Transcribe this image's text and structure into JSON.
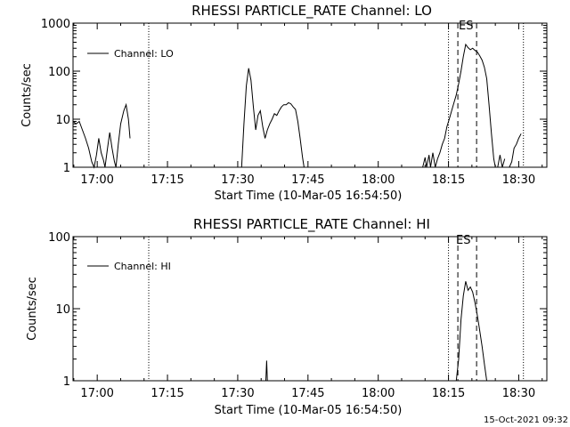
{
  "footer_timestamp": "15-Oct-2021 09:32",
  "chart_data": [
    {
      "type": "line",
      "title": "RHESSI PARTICLE_RATE Channel: LO",
      "xlabel": "Start Time (10-Mar-05 16:54:50)",
      "ylabel": "Counts/sec",
      "yscale": "log",
      "xlim": [
        "16:54:50",
        "18:36:00"
      ],
      "ylim": [
        1,
        1000
      ],
      "x_ticks": [
        "17:00",
        "17:15",
        "17:30",
        "17:45",
        "18:00",
        "18:15",
        "18:30"
      ],
      "y_ticks": [
        "1",
        "10",
        "100",
        "1000"
      ],
      "legend": "Channel: LO",
      "legend_position": "top-left",
      "annotation": "ES",
      "dotted_lines": [
        "17:11",
        "18:15",
        "18:31"
      ],
      "dashed_lines": [
        "18:17",
        "18:21"
      ],
      "series": [
        {
          "segments": [
            [
              [
                "16:54:50",
                9
              ],
              [
                "16:55:30",
                8
              ],
              [
                "16:56:10",
                9
              ],
              [
                "16:56:50",
                6
              ],
              [
                "16:57:30",
                4
              ],
              [
                "16:58:10",
                2.5
              ],
              [
                "16:58:50",
                1.3
              ],
              [
                "16:59:20",
                1
              ],
              [
                "16:59:50",
                1.8
              ],
              [
                "17:00:20",
                4
              ],
              [
                "17:00:50",
                2
              ],
              [
                "17:01:20",
                1.4
              ],
              [
                "17:01:40",
                1
              ],
              [
                "17:02:10",
                2.4
              ],
              [
                "17:02:40",
                5.3
              ],
              [
                "17:03:10",
                2.5
              ],
              [
                "17:03:40",
                1.3
              ],
              [
                "17:04:00",
                1
              ],
              [
                "17:04:30",
                3
              ],
              [
                "17:05:00",
                8
              ],
              [
                "17:05:40",
                15
              ],
              [
                "17:06:10",
                20
              ],
              [
                "17:06:40",
                10
              ],
              [
                "17:07:00",
                4
              ]
            ],
            [
              [
                "17:30:50",
                1
              ],
              [
                "17:31:20",
                8
              ],
              [
                "17:31:50",
                50
              ],
              [
                "17:32:20",
                115
              ],
              [
                "17:32:50",
                65
              ],
              [
                "17:33:20",
                18
              ],
              [
                "17:33:50",
                6
              ],
              [
                "17:34:20",
                12
              ],
              [
                "17:34:50",
                15
              ],
              [
                "17:35:20",
                7
              ],
              [
                "17:35:50",
                4
              ],
              [
                "17:36:20",
                6
              ],
              [
                "17:36:50",
                8
              ],
              [
                "17:37:20",
                10
              ],
              [
                "17:37:50",
                13
              ],
              [
                "17:38:20",
                12
              ],
              [
                "17:38:50",
                15
              ],
              [
                "17:39:20",
                18
              ],
              [
                "17:39:50",
                20
              ],
              [
                "17:40:20",
                20
              ],
              [
                "17:40:50",
                22
              ],
              [
                "17:41:20",
                21
              ],
              [
                "17:41:50",
                18
              ],
              [
                "17:42:20",
                16
              ],
              [
                "17:42:50",
                9
              ],
              [
                "17:43:20",
                4
              ],
              [
                "17:43:50",
                1.6
              ],
              [
                "17:44:10",
                1
              ]
            ],
            [
              [
                "18:09:30",
                1
              ],
              [
                "18:10:00",
                1.6
              ],
              [
                "18:10:20",
                1
              ],
              [
                "18:10:50",
                1.8
              ],
              [
                "18:11:10",
                1
              ],
              [
                "18:11:40",
                2
              ],
              [
                "18:12:10",
                1
              ],
              [
                "18:12:40",
                1.5
              ],
              [
                "18:13:10",
                2
              ],
              [
                "18:13:40",
                3
              ],
              [
                "18:14:10",
                4
              ],
              [
                "18:14:40",
                7
              ],
              [
                "18:15:10",
                10
              ],
              [
                "18:15:40",
                15
              ],
              [
                "18:16:10",
                22
              ],
              [
                "18:16:40",
                32
              ],
              [
                "18:17:10",
                55
              ],
              [
                "18:17:40",
                100
              ],
              [
                "18:18:10",
                200
              ],
              [
                "18:18:40",
                360
              ],
              [
                "18:19:10",
                310
              ],
              [
                "18:19:40",
                280
              ],
              [
                "18:20:10",
                300
              ],
              [
                "18:20:40",
                270
              ],
              [
                "18:21:10",
                250
              ],
              [
                "18:21:40",
                210
              ],
              [
                "18:22:10",
                170
              ],
              [
                "18:22:40",
                120
              ],
              [
                "18:23:10",
                70
              ],
              [
                "18:23:40",
                20
              ],
              [
                "18:24:10",
                5
              ],
              [
                "18:24:40",
                1.5
              ],
              [
                "18:25:00",
                1
              ]
            ],
            [
              [
                "18:25:30",
                1
              ],
              [
                "18:26:00",
                1.8
              ],
              [
                "18:26:30",
                1
              ],
              [
                "18:27:00",
                1.5
              ]
            ],
            [
              [
                "18:28:00",
                1
              ],
              [
                "18:28:30",
                1.3
              ],
              [
                "18:29:00",
                2.5
              ],
              [
                "18:29:30",
                3
              ],
              [
                "18:30:00",
                4
              ],
              [
                "18:30:30",
                5
              ]
            ]
          ]
        }
      ]
    },
    {
      "type": "line",
      "title": "RHESSI PARTICLE_RATE Channel: HI",
      "xlabel": "Start Time (10-Mar-05 16:54:50)",
      "ylabel": "Counts/sec",
      "yscale": "log",
      "xlim": [
        "16:54:50",
        "18:36:00"
      ],
      "ylim": [
        1,
        100
      ],
      "x_ticks": [
        "17:00",
        "17:15",
        "17:30",
        "17:45",
        "18:00",
        "18:15",
        "18:30"
      ],
      "y_ticks": [
        "1",
        "10",
        "100"
      ],
      "legend": "Channel: HI",
      "legend_position": "top-left",
      "annotation": "ES",
      "dotted_lines": [
        "17:11",
        "18:15",
        "18:31"
      ],
      "dashed_lines": [
        "18:17",
        "18:21"
      ],
      "series": [
        {
          "segments": [
            [
              [
                "17:36:00",
                1
              ],
              [
                "17:36:10",
                1.9
              ],
              [
                "17:36:20",
                1
              ]
            ],
            [
              [
                "18:16:40",
                1
              ],
              [
                "18:17:10",
                2
              ],
              [
                "18:17:40",
                7
              ],
              [
                "18:18:10",
                15
              ],
              [
                "18:18:40",
                24
              ],
              [
                "18:19:10",
                18
              ],
              [
                "18:19:40",
                20
              ],
              [
                "18:20:10",
                17
              ],
              [
                "18:20:40",
                12
              ],
              [
                "18:21:10",
                8
              ],
              [
                "18:21:40",
                5
              ],
              [
                "18:22:10",
                3
              ],
              [
                "18:22:40",
                1.7
              ],
              [
                "18:23:10",
                1
              ]
            ]
          ]
        }
      ]
    }
  ]
}
